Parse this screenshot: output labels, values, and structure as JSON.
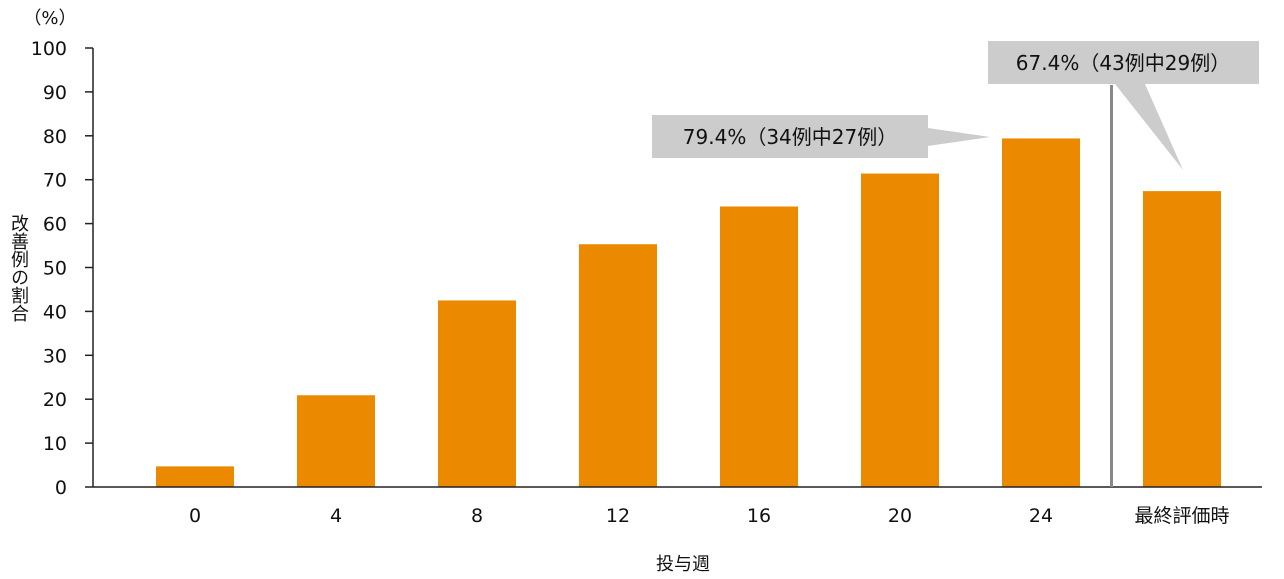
{
  "chart_data": {
    "type": "bar",
    "unit_label": "（%）",
    "ylabel": "改善例の割合",
    "xlabel": "投与週",
    "ylim": [
      0,
      100
    ],
    "yticks": [
      0,
      10,
      20,
      30,
      40,
      50,
      60,
      70,
      80,
      90,
      100
    ],
    "categories": [
      "0",
      "4",
      "8",
      "12",
      "16",
      "20",
      "24",
      "最終評価時"
    ],
    "values": [
      4.7,
      20.9,
      42.5,
      55.3,
      63.9,
      71.4,
      79.4,
      67.4
    ],
    "bar_color": "#EB8A00",
    "callouts": [
      {
        "category": "24",
        "text": "79.4%（34例中27例）"
      },
      {
        "category": "最終評価時",
        "text": "67.4%（43例中29例）"
      }
    ],
    "separator_before": "最終評価時"
  }
}
